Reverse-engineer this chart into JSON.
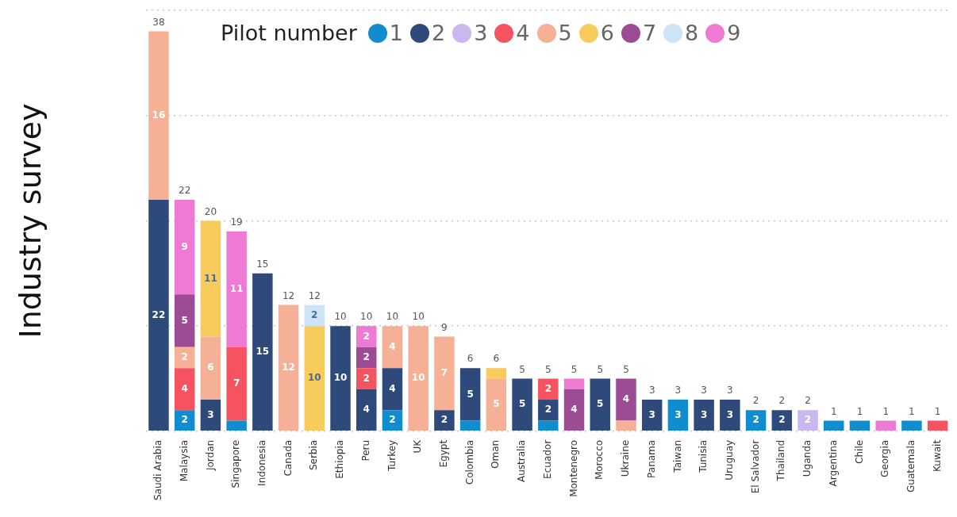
{
  "chart_data": {
    "type": "bar",
    "stacked": true,
    "ylabel": "Industry survey",
    "legend_title": "Pilot number",
    "legend": "top right",
    "grid": "y",
    "tick_labels": "x",
    "categories": [
      "Saudi Arabia",
      "Malaysia",
      "Jordan",
      "Singapore",
      "Indonesia",
      "Canada",
      "Serbia",
      "Ethiopia",
      "Peru",
      "Turkey",
      "UK",
      "Egypt",
      "Colombia",
      "Oman",
      "Australia",
      "Ecuador",
      "Montenegro",
      "Morocco",
      "Ukraine",
      "Panama",
      "Taiwan",
      "Tunisia",
      "Uruguay",
      "El Salvador",
      "Thailand",
      "Uganda",
      "Argentina",
      "Chile",
      "Georgia",
      "Guatemala",
      "Kuwait"
    ],
    "ylim": [
      0,
      40
    ],
    "yticks": [
      {
        "value": 0,
        "label": null
      },
      {
        "value": 10,
        "label": null
      },
      {
        "value": 20,
        "label": null
      },
      {
        "value": 30,
        "label": null
      },
      {
        "value": 40,
        "label": null
      }
    ],
    "series": [
      {
        "name": "1",
        "color": "#118dcf",
        "values": [
          null,
          2,
          null,
          1,
          null,
          null,
          null,
          null,
          null,
          2,
          null,
          null,
          1,
          null,
          null,
          1,
          null,
          null,
          null,
          null,
          3,
          null,
          null,
          2,
          null,
          null,
          1,
          1,
          null,
          1,
          null
        ],
        "value_labels": [
          null,
          "2",
          null,
          null,
          null,
          null,
          null,
          null,
          null,
          "2",
          null,
          null,
          null,
          null,
          null,
          null,
          null,
          null,
          null,
          null,
          "3",
          null,
          null,
          "2",
          null,
          null,
          null,
          null,
          null,
          null,
          null
        ]
      },
      {
        "name": "2",
        "color": "#2d4a7b",
        "values": [
          22,
          null,
          3,
          null,
          15,
          null,
          null,
          10,
          4,
          4,
          null,
          2,
          5,
          null,
          5,
          2,
          null,
          5,
          null,
          3,
          null,
          3,
          3,
          null,
          2,
          null,
          null,
          null,
          null,
          null,
          null
        ],
        "value_labels": [
          "22",
          null,
          "3",
          null,
          "15",
          null,
          null,
          "10",
          "4",
          "4",
          null,
          "2",
          "5",
          null,
          "5",
          "2",
          null,
          "5",
          null,
          "3",
          null,
          "3",
          "3",
          null,
          "2",
          null,
          null,
          null,
          null,
          null,
          null
        ]
      },
      {
        "name": "3",
        "color": "#c9b7ef",
        "values": [
          null,
          null,
          null,
          null,
          null,
          null,
          null,
          null,
          null,
          null,
          null,
          null,
          null,
          null,
          null,
          null,
          null,
          null,
          null,
          null,
          null,
          null,
          null,
          null,
          null,
          2,
          null,
          null,
          null,
          null,
          null
        ],
        "value_labels": [
          null,
          null,
          null,
          null,
          null,
          null,
          null,
          null,
          null,
          null,
          null,
          null,
          null,
          null,
          null,
          null,
          null,
          null,
          null,
          null,
          null,
          null,
          null,
          null,
          null,
          "2",
          null,
          null,
          null,
          null,
          null
        ]
      },
      {
        "name": "4",
        "color": "#f5535f",
        "values": [
          null,
          4,
          null,
          7,
          null,
          null,
          null,
          null,
          2,
          null,
          null,
          null,
          null,
          null,
          null,
          2,
          null,
          null,
          null,
          null,
          null,
          null,
          null,
          null,
          null,
          null,
          null,
          null,
          null,
          null,
          1
        ],
        "value_labels": [
          null,
          "4",
          null,
          "7",
          null,
          null,
          null,
          null,
          "2",
          null,
          null,
          null,
          null,
          null,
          null,
          "2",
          null,
          null,
          null,
          null,
          null,
          null,
          null,
          null,
          null,
          null,
          null,
          null,
          null,
          null,
          null
        ]
      },
      {
        "name": "5",
        "color": "#f5b096",
        "values": [
          16,
          2,
          6,
          null,
          null,
          12,
          null,
          null,
          null,
          4,
          10,
          7,
          null,
          5,
          null,
          null,
          null,
          null,
          1,
          null,
          null,
          null,
          null,
          null,
          null,
          null,
          null,
          null,
          null,
          null,
          null
        ],
        "value_labels": [
          "16",
          "2",
          "6",
          null,
          null,
          "12",
          null,
          null,
          null,
          "4",
          "10",
          "7",
          null,
          "5",
          null,
          null,
          null,
          null,
          null,
          null,
          null,
          null,
          null,
          null,
          null,
          null,
          null,
          null,
          null,
          null,
          null
        ]
      },
      {
        "name": "6",
        "color": "#f7cb5c",
        "values": [
          null,
          null,
          11,
          null,
          null,
          null,
          10,
          null,
          null,
          null,
          null,
          null,
          null,
          1,
          null,
          null,
          null,
          null,
          null,
          null,
          null,
          null,
          null,
          null,
          null,
          null,
          null,
          null,
          null,
          null,
          null
        ],
        "value_labels": [
          null,
          null,
          "11",
          null,
          null,
          null,
          "10",
          null,
          null,
          null,
          null,
          null,
          null,
          null,
          null,
          null,
          null,
          null,
          null,
          null,
          null,
          null,
          null,
          null,
          null,
          null,
          null,
          null,
          null,
          null,
          null
        ]
      },
      {
        "name": "7",
        "color": "#9b4c95",
        "values": [
          null,
          5,
          null,
          null,
          null,
          null,
          null,
          null,
          2,
          null,
          null,
          null,
          null,
          null,
          null,
          null,
          4,
          null,
          4,
          null,
          null,
          null,
          null,
          null,
          null,
          null,
          null,
          null,
          null,
          null,
          null
        ],
        "value_labels": [
          null,
          "5",
          null,
          null,
          null,
          null,
          null,
          null,
          "2",
          null,
          null,
          null,
          null,
          null,
          null,
          null,
          "4",
          null,
          "4",
          null,
          null,
          null,
          null,
          null,
          null,
          null,
          null,
          null,
          null,
          null,
          null
        ]
      },
      {
        "name": "8",
        "color": "#cde4f7",
        "values": [
          null,
          null,
          null,
          null,
          null,
          null,
          2,
          null,
          null,
          null,
          null,
          null,
          null,
          null,
          null,
          null,
          null,
          null,
          null,
          null,
          null,
          null,
          null,
          null,
          null,
          null,
          null,
          null,
          null,
          null,
          null
        ],
        "value_labels": [
          null,
          null,
          null,
          null,
          null,
          null,
          "2",
          null,
          null,
          null,
          null,
          null,
          null,
          null,
          null,
          null,
          null,
          null,
          null,
          null,
          null,
          null,
          null,
          null,
          null,
          null,
          null,
          null,
          null,
          null,
          null
        ]
      },
      {
        "name": "9",
        "color": "#ef7ad3",
        "values": [
          null,
          9,
          null,
          11,
          null,
          null,
          null,
          null,
          2,
          null,
          null,
          null,
          null,
          null,
          null,
          null,
          1,
          null,
          null,
          null,
          null,
          null,
          null,
          null,
          null,
          null,
          null,
          null,
          1,
          null,
          null
        ],
        "value_labels": [
          null,
          "9",
          null,
          "11",
          null,
          null,
          null,
          null,
          "2",
          null,
          null,
          null,
          null,
          null,
          null,
          null,
          null,
          null,
          null,
          null,
          null,
          null,
          null,
          null,
          null,
          null,
          null,
          null,
          null,
          null,
          null
        ]
      }
    ],
    "totals": [
      "38",
      "22",
      "20",
      "19",
      "15",
      "12",
      "12",
      "10",
      "10",
      "10",
      "10",
      "9",
      "6",
      "6",
      "5",
      "5",
      "5",
      "5",
      "5",
      "3",
      "3",
      "3",
      "3",
      "2",
      "2",
      "2",
      "1",
      "1",
      "1",
      "1",
      "1"
    ]
  }
}
